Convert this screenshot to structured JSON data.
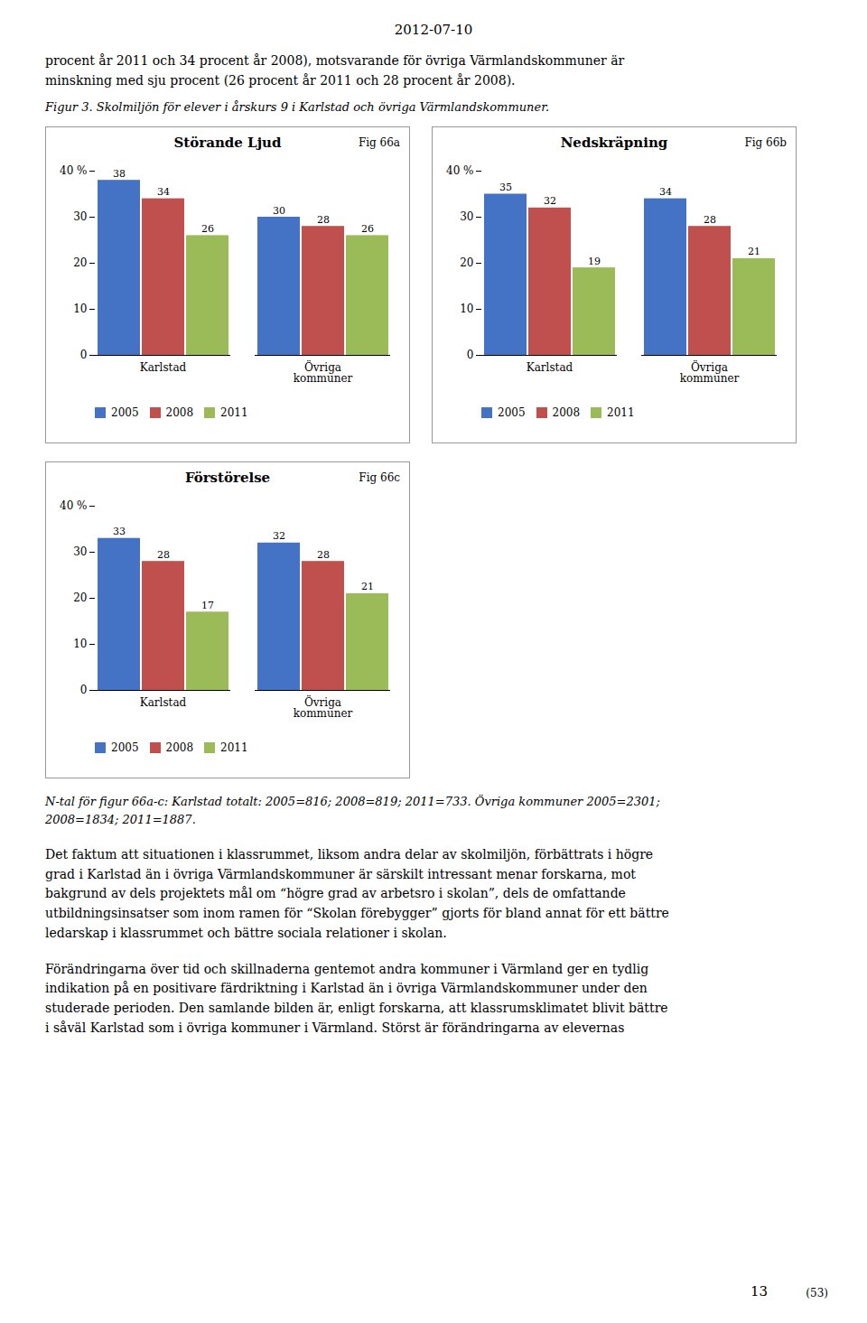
{
  "chart_data": [
    {
      "type": "bar",
      "title": "Störande Ljud",
      "annotation": "Fig 66a",
      "categories": [
        "Karlstad",
        "Övriga\nkommuner"
      ],
      "series": [
        {
          "name": "2005",
          "color": "#4472C4",
          "values": [
            38,
            30
          ]
        },
        {
          "name": "2008",
          "color": "#C0504D",
          "values": [
            34,
            28
          ]
        },
        {
          "name": "2011",
          "color": "#9BBB59",
          "values": [
            26,
            26
          ]
        }
      ],
      "ylim": [
        0,
        40
      ],
      "yticks": [
        0,
        10,
        20,
        30,
        {
          "value": 40,
          "label": "40 %"
        }
      ],
      "data_labels": true,
      "legend": "bottom",
      "grid": false
    },
    {
      "type": "bar",
      "title": "Nedskräpning",
      "annotation": "Fig 66b",
      "categories": [
        "Karlstad",
        "Övriga\nkommuner"
      ],
      "series": [
        {
          "name": "2005",
          "color": "#4472C4",
          "values": [
            35,
            34
          ]
        },
        {
          "name": "2008",
          "color": "#C0504D",
          "values": [
            32,
            28
          ]
        },
        {
          "name": "2011",
          "color": "#9BBB59",
          "values": [
            19,
            21
          ]
        }
      ],
      "ylim": [
        0,
        40
      ],
      "yticks": [
        0,
        10,
        20,
        30,
        {
          "value": 40,
          "label": "40 %"
        }
      ],
      "data_labels": true,
      "legend": "bottom",
      "grid": false
    },
    {
      "type": "bar",
      "title": "Förstörelse",
      "annotation": "Fig 66c",
      "categories": [
        "Karlstad",
        "Övriga\nkommuner"
      ],
      "series": [
        {
          "name": "2005",
          "color": "#4472C4",
          "values": [
            33,
            32
          ]
        },
        {
          "name": "2008",
          "color": "#C0504D",
          "values": [
            28,
            28
          ]
        },
        {
          "name": "2011",
          "color": "#9BBB59",
          "values": [
            17,
            21
          ]
        }
      ],
      "ylim": [
        0,
        40
      ],
      "yticks": [
        0,
        10,
        20,
        30,
        {
          "value": 40,
          "label": "40 %"
        }
      ],
      "data_labels": true,
      "legend": "bottom",
      "grid": false
    }
  ],
  "date_header": "2012-07-10",
  "intro_text": "procent år 2011 och 34 procent år 2008), motsvarande för övriga Värmlandskommuner är\nminskning med sju procent (26 procent år 2011 och 28 procent år 2008).",
  "figure_caption": "Figur 3.  Skolmiljön för elever i årskurs 9 i Karlstad och övriga Värmlandskommuner.",
  "note": "N-tal för figur 66a-c: Karlstad totalt: 2005=816; 2008=819; 2011=733. Övriga kommuner 2005=2301;\n2008=1834; 2011=1887.",
  "paragraphs": [
    "Det faktum att situationen i klassrummet, liksom andra delar av skolmiljön, förbättrats i högre\ngrad i Karlstad än i övriga Värmlandskommuner är särskilt intressant menar forskarna, mot\nbakgrund av dels projektets mål om “högre grad av arbetsro i skolan”, dels de omfattande\nutbildningsinsatser som inom ramen för “Skolan förebygger” gjorts för bland annat för ett bättre\nledarskap i klassrummet och bättre sociala relationer i skolan.",
    "Förändringarna över tid och skillnaderna gentemot andra kommuner i Värmland ger en tydlig\nindikation på en positivare färdriktning i Karlstad än i övriga Värmlandskommuner under den\nstuderade perioden. Den samlande bilden är, enligt forskarna, att klassrumsklimatet blivit bättre\ni såväl Karlstad som i övriga kommuner i Värmland. Störst är förändringarna av elevernas"
  ],
  "page_number": "13",
  "page_ref": "(53)"
}
